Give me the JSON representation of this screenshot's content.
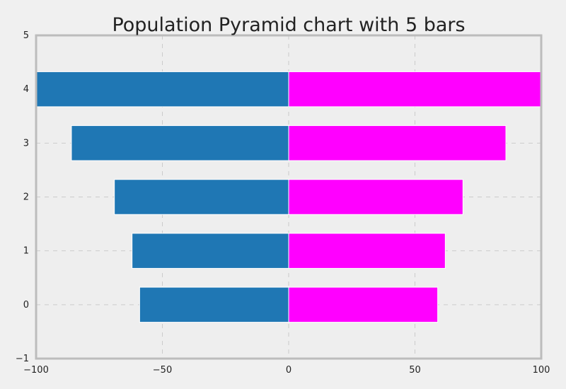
{
  "chart_data": {
    "type": "bar",
    "orientation": "horizontal",
    "title": "Population Pyramid chart with 5 bars",
    "xlabel": "",
    "ylabel": "",
    "categories": [
      0,
      1,
      2,
      3,
      4
    ],
    "series": [
      {
        "color": "#1f77b4",
        "values": [
          -59,
          -62,
          -69,
          -86,
          -100
        ]
      },
      {
        "color": "#ff00ff",
        "values": [
          59,
          62,
          69,
          86,
          100
        ]
      }
    ],
    "xlim": [
      -100,
      100
    ],
    "ylim": [
      -1,
      5
    ],
    "xticks": [
      -100,
      -50,
      0,
      50,
      100
    ],
    "xtick_labels": [
      "−100",
      "−50",
      "0",
      "50",
      "100"
    ],
    "yticks": [
      -1,
      0,
      1,
      2,
      3,
      4,
      5
    ],
    "ytick_labels": [
      "−1",
      "0",
      "1",
      "2",
      "3",
      "4",
      "5"
    ],
    "grid": true,
    "legend": "none"
  },
  "colors": {
    "figure_background": "#f0f0f0",
    "plot_background": "#eeeeee",
    "grid": "#cbcbcb",
    "frame": "#bcbcbc",
    "text": "#222222"
  }
}
